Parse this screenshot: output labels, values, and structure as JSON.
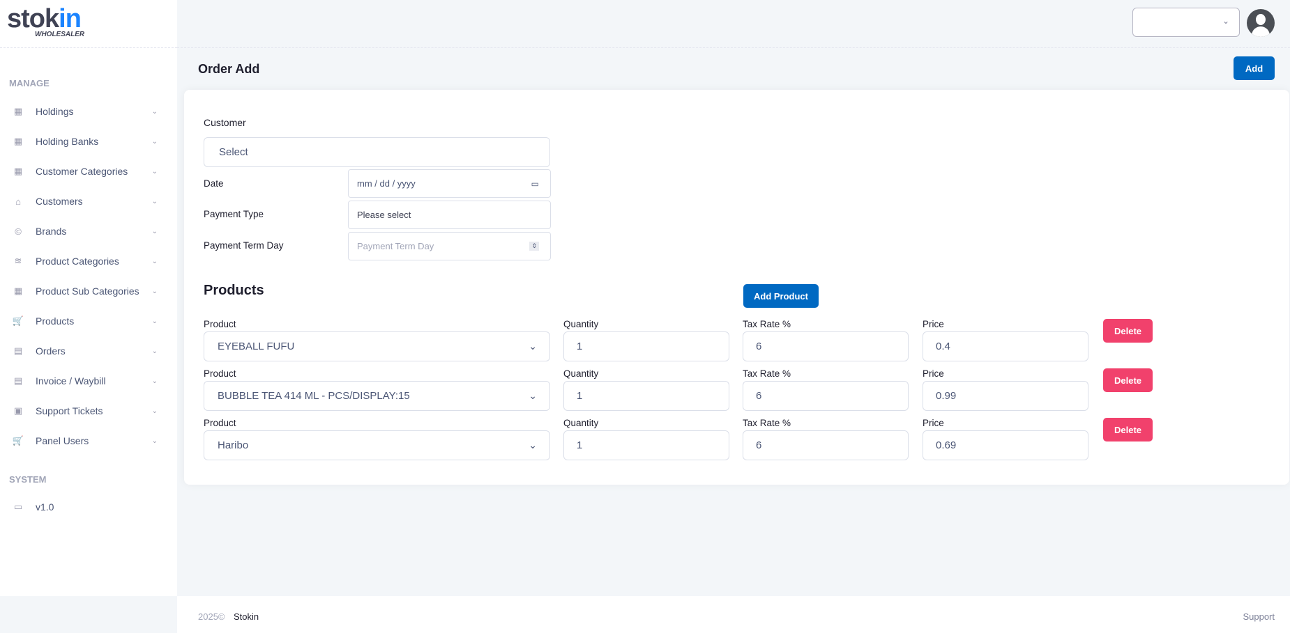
{
  "brand": {
    "logo_main": "stok",
    "logo_accent": "in",
    "logo_sub": "WHOLESALER"
  },
  "sidebar": {
    "manage_label": "MANAGE",
    "items": [
      {
        "label": "Holdings",
        "icon": "building-icon"
      },
      {
        "label": "Holding Banks",
        "icon": "building-icon"
      },
      {
        "label": "Customer Categories",
        "icon": "building-icon"
      },
      {
        "label": "Customers",
        "icon": "shop-icon"
      },
      {
        "label": "Brands",
        "icon": "copyright-icon"
      },
      {
        "label": "Product Categories",
        "icon": "layers-icon"
      },
      {
        "label": "Product Sub Categories",
        "icon": "grid-icon"
      },
      {
        "label": "Products",
        "icon": "cart-icon"
      },
      {
        "label": "Orders",
        "icon": "orders-icon"
      },
      {
        "label": "Invoice / Waybill",
        "icon": "document-icon"
      },
      {
        "label": "Support Tickets",
        "icon": "inbox-icon"
      },
      {
        "label": "Panel Users",
        "icon": "cart-icon"
      }
    ],
    "system_label": "SYSTEM",
    "version": "v1.0"
  },
  "header": {
    "title": "Order Add",
    "add_label": "Add"
  },
  "form": {
    "customer_label": "Customer",
    "customer_value": "Select",
    "date_label": "Date",
    "date_placeholder": "mm / dd / yyyy",
    "payment_type_label": "Payment Type",
    "payment_type_value": "Please select",
    "payment_term_label": "Payment Term Day",
    "payment_term_placeholder": "Payment Term Day"
  },
  "products": {
    "heading": "Products",
    "add_label": "Add Product",
    "col_product": "Product",
    "col_quantity": "Quantity",
    "col_tax": "Tax Rate %",
    "col_price": "Price",
    "delete_label": "Delete",
    "rows": [
      {
        "product": "EYEBALL FUFU",
        "quantity": "1",
        "tax": "6",
        "price": "0.4"
      },
      {
        "product": "BUBBLE TEA 414 ML - PCS/DISPLAY:15",
        "quantity": "1",
        "tax": "6",
        "price": "0.99"
      },
      {
        "product": "Haribo",
        "quantity": "1",
        "tax": "6",
        "price": "0.69"
      }
    ]
  },
  "footer": {
    "year": "2025©",
    "company": "Stokin",
    "support": "Support"
  },
  "colors": {
    "primary": "#0069c2",
    "danger": "#f1416c",
    "accent": "#1b84ff"
  }
}
